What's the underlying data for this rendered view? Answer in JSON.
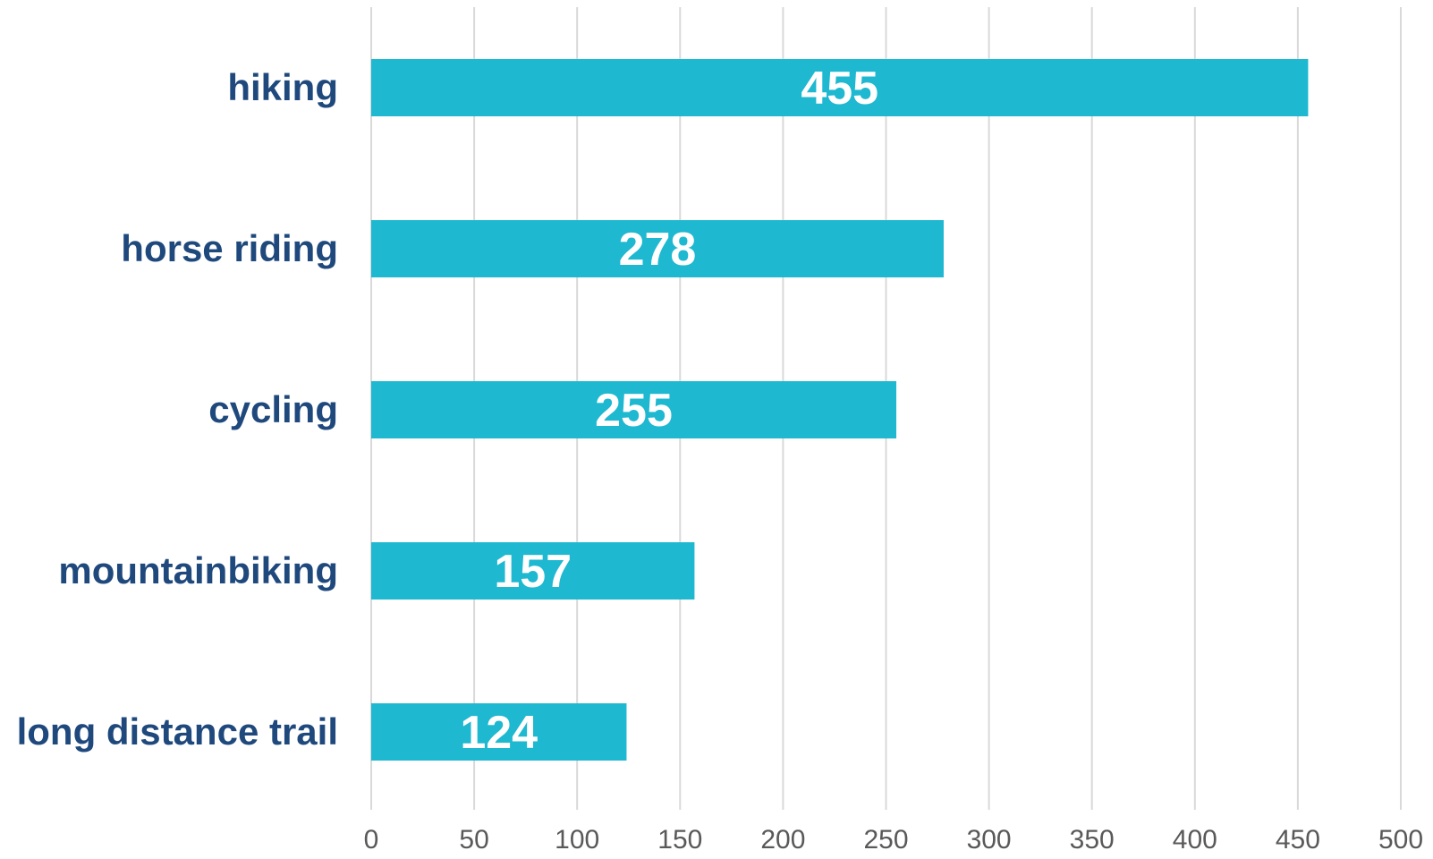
{
  "chart_data": {
    "type": "bar",
    "orientation": "horizontal",
    "categories": [
      "hiking",
      "horse riding",
      "cycling",
      "mountainbiking",
      "long distance trail"
    ],
    "values": [
      455,
      278,
      255,
      157,
      124
    ],
    "value_labels": [
      "455",
      "278",
      "255",
      "157",
      "124"
    ],
    "xlim": [
      0,
      500
    ],
    "xticks": [
      0,
      50,
      100,
      150,
      200,
      250,
      300,
      350,
      400,
      450,
      500
    ],
    "xtick_labels": [
      "0",
      "50",
      "100",
      "150",
      "200",
      "250",
      "300",
      "350",
      "400",
      "450",
      "500"
    ],
    "grid": "vertical",
    "legend": "none",
    "colors": {
      "bar": "#1eb8d0",
      "category_text": "#1f497d",
      "tick_text": "#595959",
      "grid": "#d9d9d9",
      "data_label": "#ffffff"
    }
  }
}
